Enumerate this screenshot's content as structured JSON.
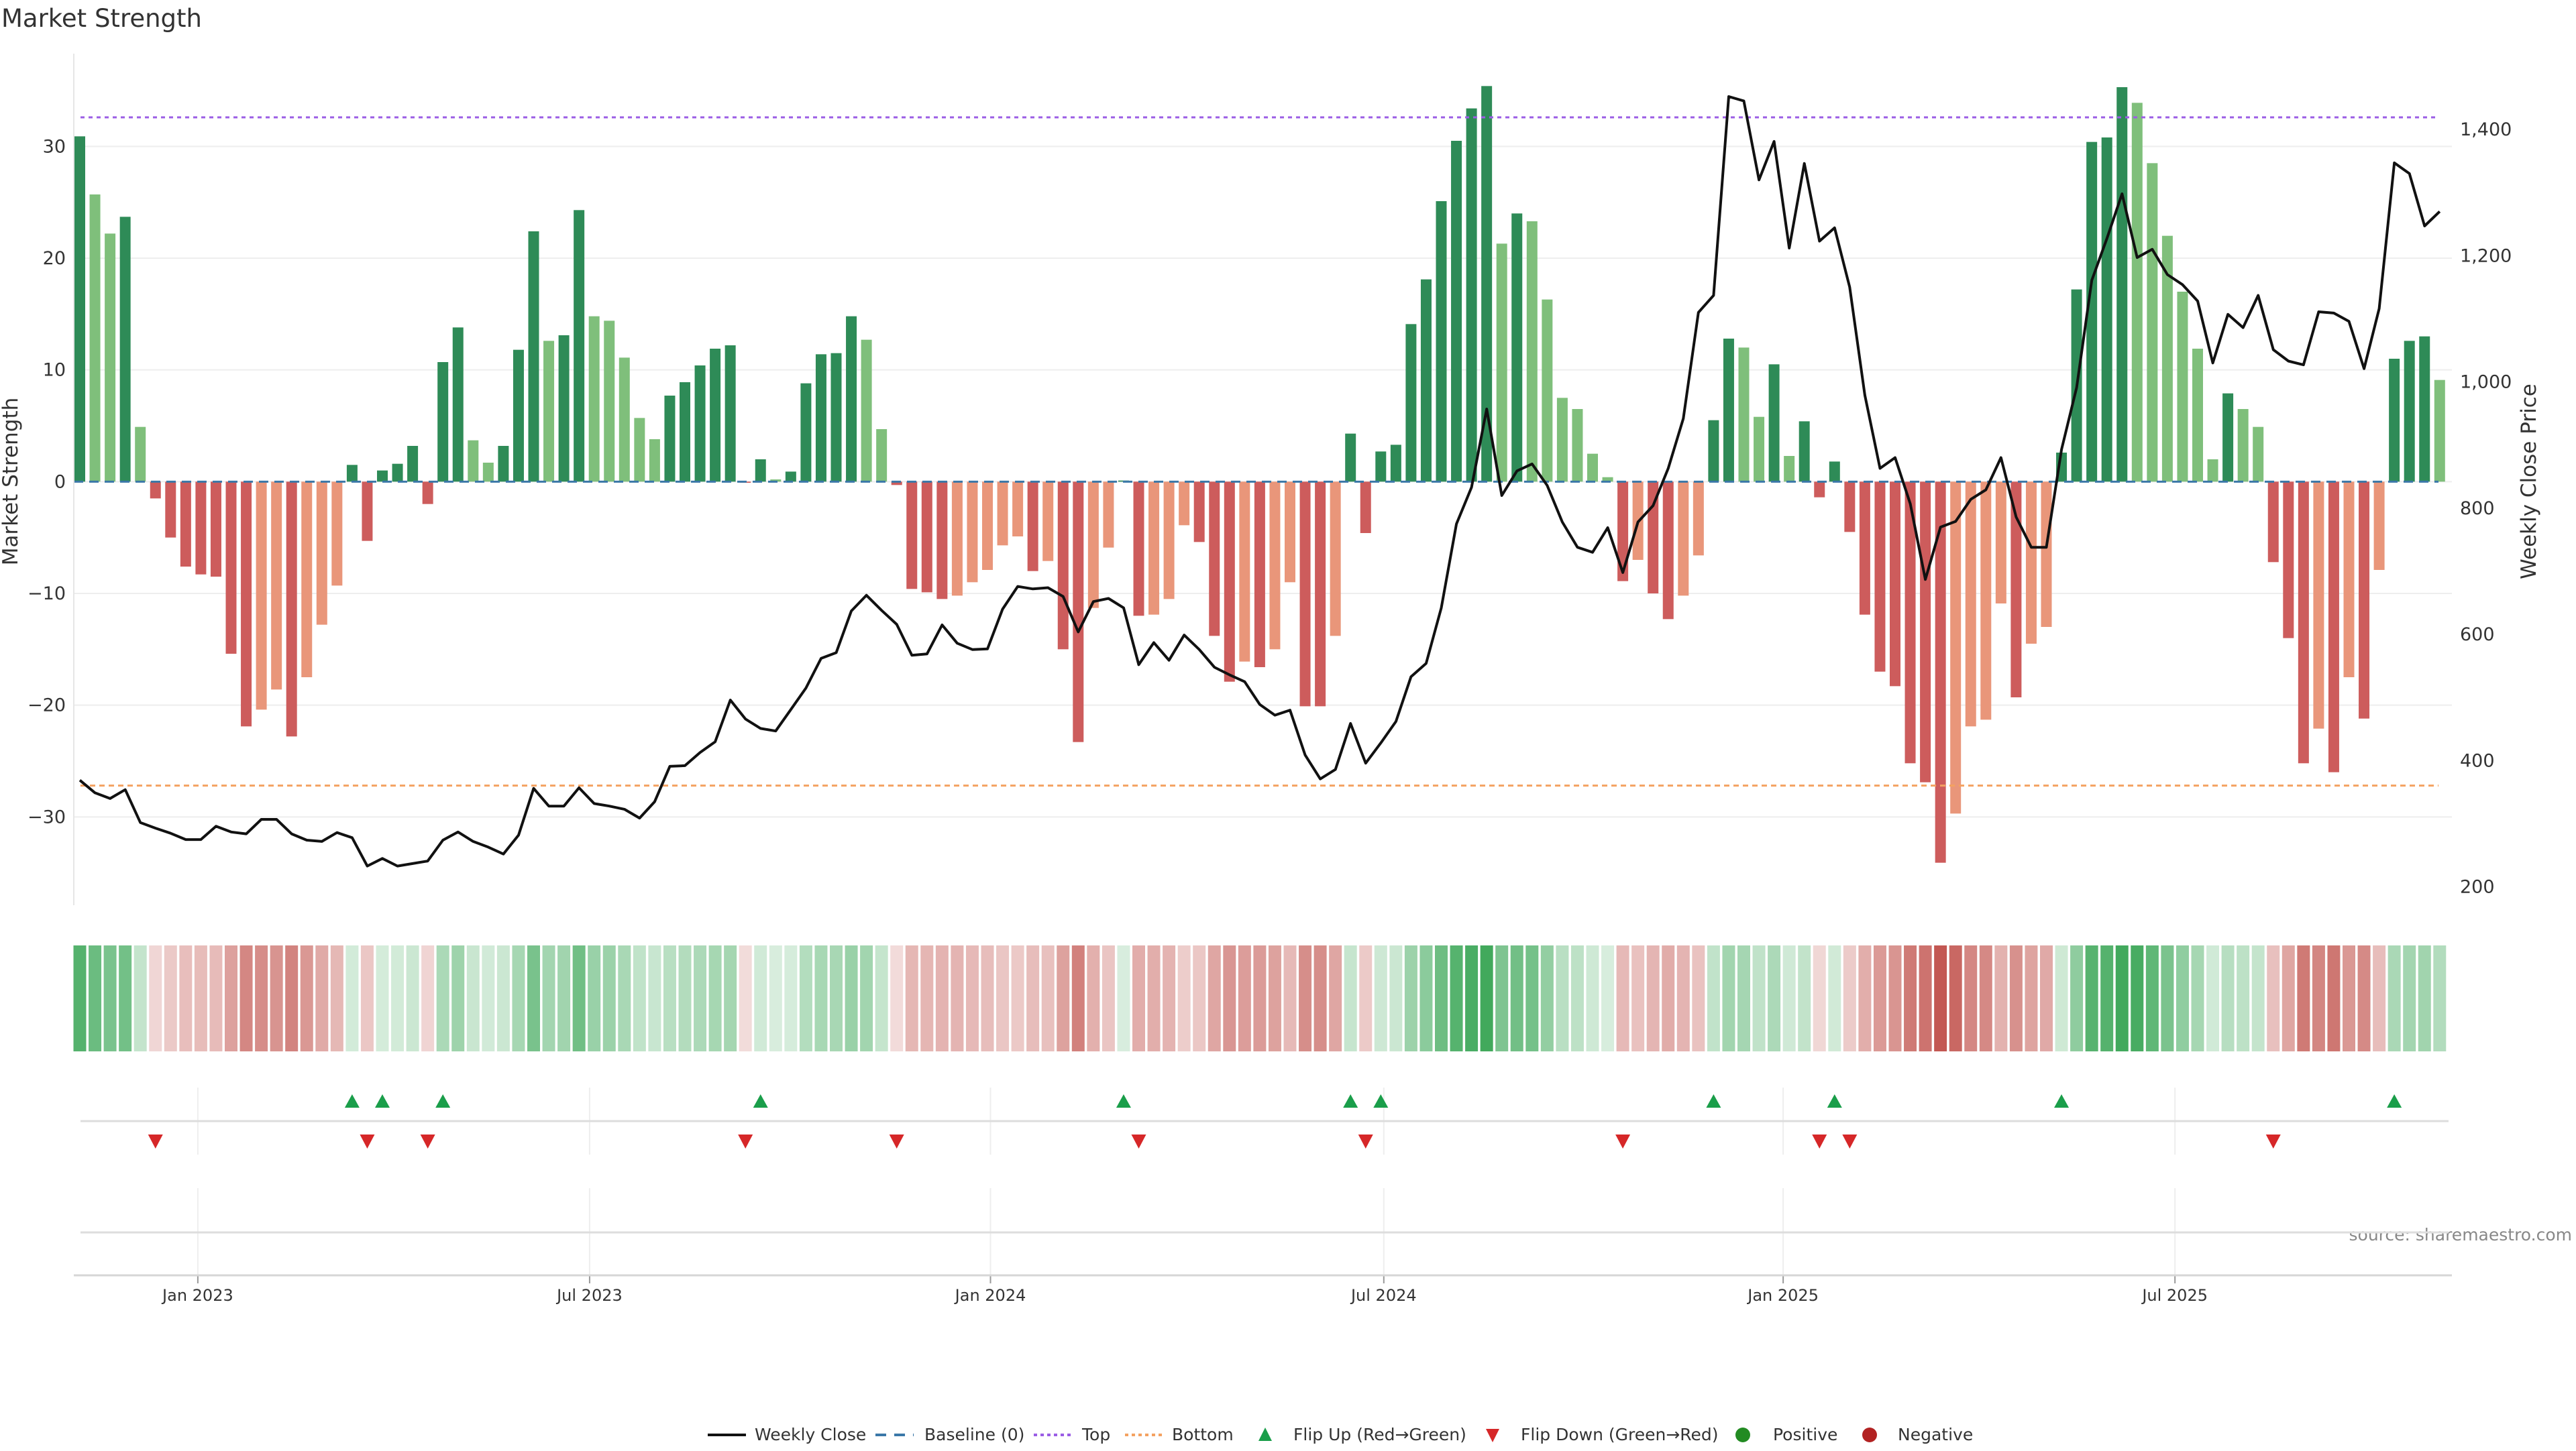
{
  "title": "Market Strength",
  "source": "source: sharemaestro.com",
  "chart_data": {
    "type": "bar",
    "title": "Market Strength",
    "ylabel": "Market Strength",
    "y2label": "Weekly Close Price",
    "ylim": [
      -37.9,
      38.3
    ],
    "y2lim": [
      171,
      1520
    ],
    "yticks": [
      -30,
      -20,
      -10,
      0,
      10,
      20,
      30
    ],
    "y2ticks": [
      200,
      400,
      600,
      800,
      1000,
      1200,
      1400
    ],
    "y2tick_labels": [
      "200",
      "400",
      "600",
      "800",
      "1,000",
      "1,200",
      "1,400"
    ],
    "yticks_labels": [
      "−30",
      "−20",
      "−10",
      "0",
      "10",
      "20",
      "30"
    ],
    "top_level": 32.6,
    "bottom_level": -27.2,
    "x_ticks": [
      {
        "label": "Jan 2023",
        "week": 7.8
      },
      {
        "label": "Jul 2023",
        "week": 33.7
      },
      {
        "label": "Jan 2024",
        "week": 60.2
      },
      {
        "label": "Jul 2024",
        "week": 86.2
      },
      {
        "label": "Jan 2025",
        "week": 112.6
      },
      {
        "label": "Jul 2025",
        "week": 138.5
      }
    ],
    "grid": true,
    "legend_position": "bottom-center",
    "strength": [
      30.9,
      25.7,
      22.2,
      23.7,
      4.9,
      -1.5,
      -5.0,
      -7.6,
      -8.3,
      -8.5,
      -15.4,
      -21.9,
      -20.4,
      -18.6,
      -22.8,
      -17.5,
      -12.8,
      -9.3,
      1.5,
      -5.3,
      1.0,
      1.6,
      3.2,
      -2.0,
      10.7,
      13.8,
      3.7,
      1.7,
      3.2,
      11.8,
      22.4,
      12.6,
      13.1,
      24.3,
      14.8,
      14.4,
      11.1,
      5.7,
      3.8,
      7.7,
      8.9,
      10.4,
      11.9,
      12.2,
      -0.1,
      2.0,
      0.2,
      0.9,
      8.8,
      11.4,
      11.5,
      14.8,
      12.7,
      4.7,
      -0.3,
      -9.6,
      -9.9,
      -10.5,
      -10.2,
      -9.0,
      -7.9,
      -5.7,
      -4.9,
      -8.0,
      -7.1,
      -15.0,
      -23.3,
      -11.3,
      -5.9,
      0.1,
      -12.0,
      -11.9,
      -10.5,
      -3.9,
      -5.4,
      -13.8,
      -17.9,
      -16.1,
      -16.6,
      -15.0,
      -9.0,
      -20.1,
      -20.1,
      -13.8,
      4.3,
      -4.6,
      2.7,
      3.3,
      14.1,
      18.1,
      25.1,
      30.5,
      33.4,
      35.4,
      21.3,
      24.0,
      23.3,
      16.3,
      7.5,
      6.5,
      2.5,
      0.4,
      -8.9,
      -7.0,
      -10.0,
      -12.3,
      -10.2,
      -6.6,
      5.5,
      12.8,
      12.0,
      5.8,
      10.5,
      2.3,
      5.4,
      -1.4,
      1.8,
      -4.5,
      -11.9,
      -17.0,
      -18.3,
      -25.2,
      -26.9,
      -34.1,
      -29.7,
      -21.9,
      -21.3,
      -10.9,
      -19.3,
      -14.5,
      -13.0,
      2.6,
      17.2,
      30.4,
      30.8,
      35.3,
      33.9,
      28.5,
      22.0,
      17.0,
      11.9,
      2.0,
      7.9,
      6.5,
      4.9,
      -7.2,
      -14.0,
      -25.2,
      -22.1,
      -26.0,
      -17.5,
      -21.2,
      -7.9,
      11.0,
      12.6,
      13.0,
      9.1
    ],
    "weekly_close": [
      369,
      349,
      340,
      354,
      302,
      293,
      285,
      275,
      275,
      296,
      287,
      284,
      307,
      307,
      284,
      274,
      272,
      286,
      278,
      233,
      245,
      233,
      237,
      241,
      274,
      287,
      272,
      263,
      252,
      282,
      356,
      328,
      328,
      357,
      332,
      328,
      323,
      309,
      335,
      391,
      392,
      413,
      430,
      496,
      466,
      451,
      447,
      481,
      515,
      562,
      571,
      637,
      662,
      638,
      616,
      567,
      569,
      615,
      586,
      576,
      577,
      640,
      676,
      672,
      674,
      660,
      604,
      652,
      657,
      642,
      552,
      587,
      559,
      599,
      576,
      548,
      536,
      525,
      489,
      472,
      480,
      409,
      371,
      386,
      459,
      396,
      428,
      462,
      533,
      554,
      642,
      775,
      833,
      957,
      820,
      859,
      870,
      836,
      778,
      738,
      730,
      769,
      698,
      778,
      804,
      863,
      942,
      1110,
      1137,
      1452,
      1445,
      1320,
      1381,
      1212,
      1346,
      1223,
      1244,
      1150,
      979,
      863,
      880,
      807,
      687,
      770,
      779,
      814,
      829,
      880,
      786,
      738,
      738,
      893,
      991,
      1161,
      1227,
      1298,
      1197,
      1210,
      1170,
      1154,
      1128,
      1030,
      1107,
      1086,
      1137,
      1051,
      1033,
      1027,
      1111,
      1109,
      1096,
      1021,
      1116,
      1347,
      1330,
      1247,
      1270
    ],
    "legend": [
      "Weekly Close",
      "Baseline (0)",
      "Top",
      "Bottom",
      "Flip Up (Red→Green)",
      "Flip Down (Green→Red)",
      "Positive",
      "Negative"
    ],
    "colors": {
      "pos_strong": "#2e8b57",
      "pos_weak": "#7fbf7b",
      "neg_strong": "#cd5c5c",
      "neg_weak": "#e9967a",
      "line": "#111111",
      "baseline": "#3b78a8",
      "top": "#9b5de5",
      "bottom": "#f4a261",
      "flip_up": "#1a9e4a",
      "flip_down": "#d62728",
      "positive": "#228b22",
      "negative": "#b22222",
      "heat_pos": "#3fa85a",
      "heat_neg": "#c0504a"
    }
  }
}
